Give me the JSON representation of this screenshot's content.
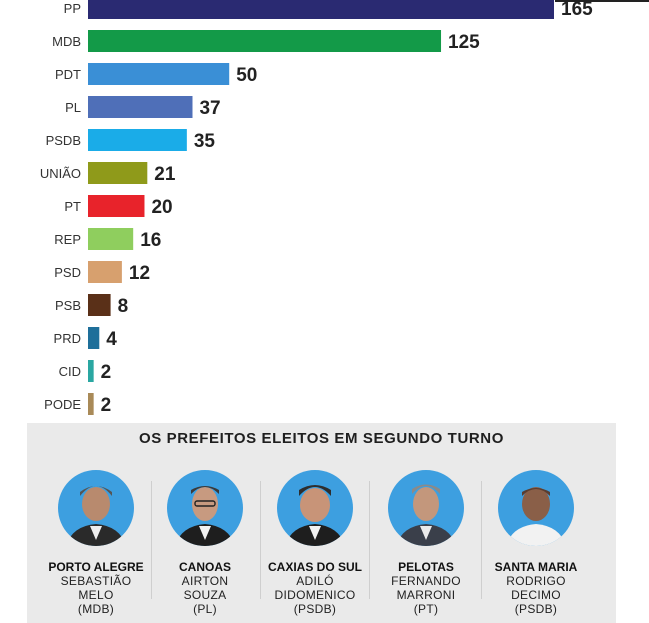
{
  "chart_data": {
    "type": "bar",
    "orientation": "horizontal",
    "categories": [
      "PP",
      "MDB",
      "PDT",
      "PL",
      "PSDB",
      "UNIÃO",
      "PT",
      "REP",
      "PSD",
      "PSB",
      "PRD",
      "CID",
      "PODE"
    ],
    "values": [
      165,
      125,
      50,
      37,
      35,
      21,
      20,
      16,
      12,
      8,
      4,
      2,
      2
    ],
    "colors": [
      "#2a2a72",
      "#139a48",
      "#3a8fd6",
      "#4f6fb8",
      "#1aace8",
      "#8f9a1a",
      "#e8232b",
      "#8fce5e",
      "#d7a06e",
      "#5a3018",
      "#1e6f9a",
      "#2aa7a2",
      "#a98a58"
    ],
    "grid": false,
    "legend": "none",
    "xlim": [
      0,
      165
    ]
  },
  "panel": {
    "title": "OS PREFEITOS ELEITOS EM SEGUNDO TURNO",
    "mayors": [
      {
        "city": "PORTO ALEGRE",
        "first": "SEBASTIÃO",
        "last": "MELO",
        "party": "(MDB)"
      },
      {
        "city": "CANOAS",
        "first": "AIRTON",
        "last": "SOUZA",
        "party": "(PL)"
      },
      {
        "city": "CAXIAS DO SUL",
        "first": "ADILÓ",
        "last": "DIDOMENICO",
        "party": "(PSDB)"
      },
      {
        "city": "PELOTAS",
        "first": "FERNANDO",
        "last": "MARRONI",
        "party": "(PT)"
      },
      {
        "city": "SANTA MARIA",
        "first": "RODRIGO",
        "last": "DECIMO",
        "party": "(PSDB)"
      }
    ]
  },
  "colors": {
    "photo_background": "#3d9fe0",
    "panel_background": "#eaeaea"
  }
}
